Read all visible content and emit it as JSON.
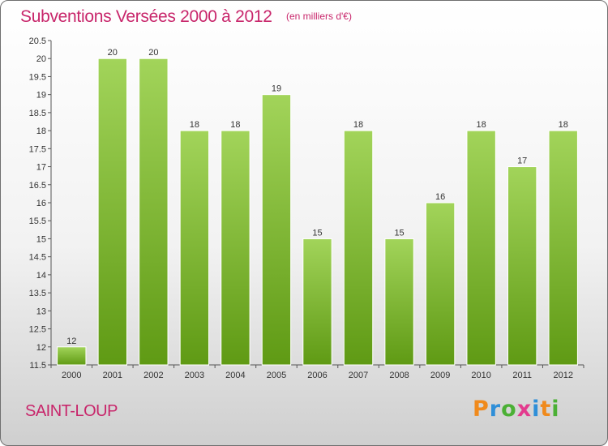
{
  "header": {
    "title": "Subventions Versées 2000 à 2012",
    "subtitle": "(en milliers d'€)"
  },
  "footer": {
    "commune": "SAINT-LOUP",
    "brand": "Proxiti",
    "brand_colors": [
      "#f08a1c",
      "#2f8fd8",
      "#4bb035",
      "#e33b8e",
      "#2f8fd8",
      "#f08a1c",
      "#4bb035"
    ]
  },
  "chart_data": {
    "type": "bar",
    "categories": [
      "2000",
      "2001",
      "2002",
      "2003",
      "2004",
      "2005",
      "2006",
      "2007",
      "2008",
      "2009",
      "2010",
      "2011",
      "2012"
    ],
    "values": [
      12,
      20,
      20,
      18,
      18,
      19,
      15,
      18,
      15,
      16,
      18,
      17,
      18
    ],
    "data_labels": [
      "12",
      "20",
      "20",
      "18",
      "18",
      "19",
      "15",
      "18",
      "15",
      "16",
      "18",
      "17",
      "18"
    ],
    "y_ticks": [
      "11.5",
      "12",
      "12.5",
      "13",
      "13.5",
      "14",
      "14.5",
      "15",
      "15.5",
      "16",
      "16.5",
      "17",
      "17.5",
      "18",
      "18.5",
      "19",
      "19.5",
      "20",
      "20.5"
    ],
    "ylim": [
      11.5,
      20.5
    ],
    "grid": false,
    "bar_color_top": "#a2d45a",
    "bar_color_bottom": "#5f9a14"
  }
}
